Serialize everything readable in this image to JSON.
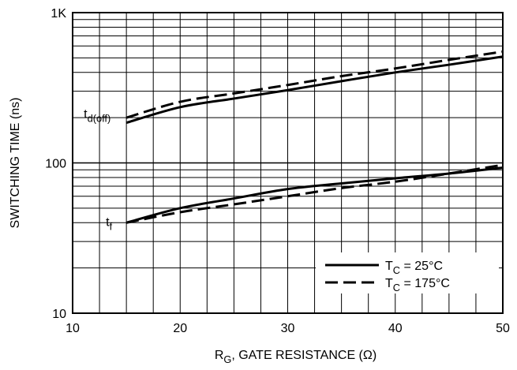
{
  "chart_data": {
    "type": "line",
    "xlabel": {
      "prefix": "R",
      "sub": "G",
      "suffix": ", GATE RESISTANCE (Ω)"
    },
    "ylabel": "SWITCHING TIME (ns)",
    "xlim": [
      10,
      50
    ],
    "ylim": [
      10,
      1000
    ],
    "yscale": "log",
    "grid": true,
    "x_ticks": [
      10,
      20,
      30,
      40,
      50
    ],
    "x_tick_labels": [
      "10",
      "20",
      "30",
      "40",
      "50"
    ],
    "y_major_ticks": [
      10,
      100,
      1000
    ],
    "y_tick_labels": [
      "10",
      "100",
      "1K"
    ],
    "legend_position": "bottom-right",
    "legend": [
      {
        "prefix": "T",
        "sub": "C",
        "suffix": " = 25°C",
        "style": "solid"
      },
      {
        "prefix": "T",
        "sub": "C",
        "suffix": " = 175°C",
        "style": "dashed"
      }
    ],
    "series": [
      {
        "group": "td(off)",
        "style": "solid",
        "x": [
          15,
          20,
          25,
          30,
          35,
          40,
          45,
          50
        ],
        "y": [
          185,
          235,
          268,
          305,
          350,
          400,
          450,
          510
        ]
      },
      {
        "group": "td(off)",
        "style": "dashed",
        "x": [
          15,
          20,
          25,
          30,
          35,
          40,
          45,
          50
        ],
        "y": [
          200,
          255,
          290,
          330,
          378,
          425,
          485,
          550
        ]
      },
      {
        "group": "tf",
        "style": "solid",
        "x": [
          15,
          20,
          25,
          30,
          35,
          40,
          45,
          50
        ],
        "y": [
          40,
          50,
          58,
          67,
          73,
          79,
          85,
          93
        ]
      },
      {
        "group": "tf",
        "style": "dashed",
        "x": [
          15,
          20,
          25,
          30,
          35,
          40,
          45,
          50
        ],
        "y": [
          40,
          47,
          53,
          60,
          68,
          75,
          85,
          97
        ]
      }
    ],
    "annotations": [
      {
        "base": "t",
        "sub": "d(off)",
        "x": 15,
        "y": 190
      },
      {
        "base": "t",
        "sub": "f",
        "x": 15,
        "y": 40
      }
    ]
  }
}
